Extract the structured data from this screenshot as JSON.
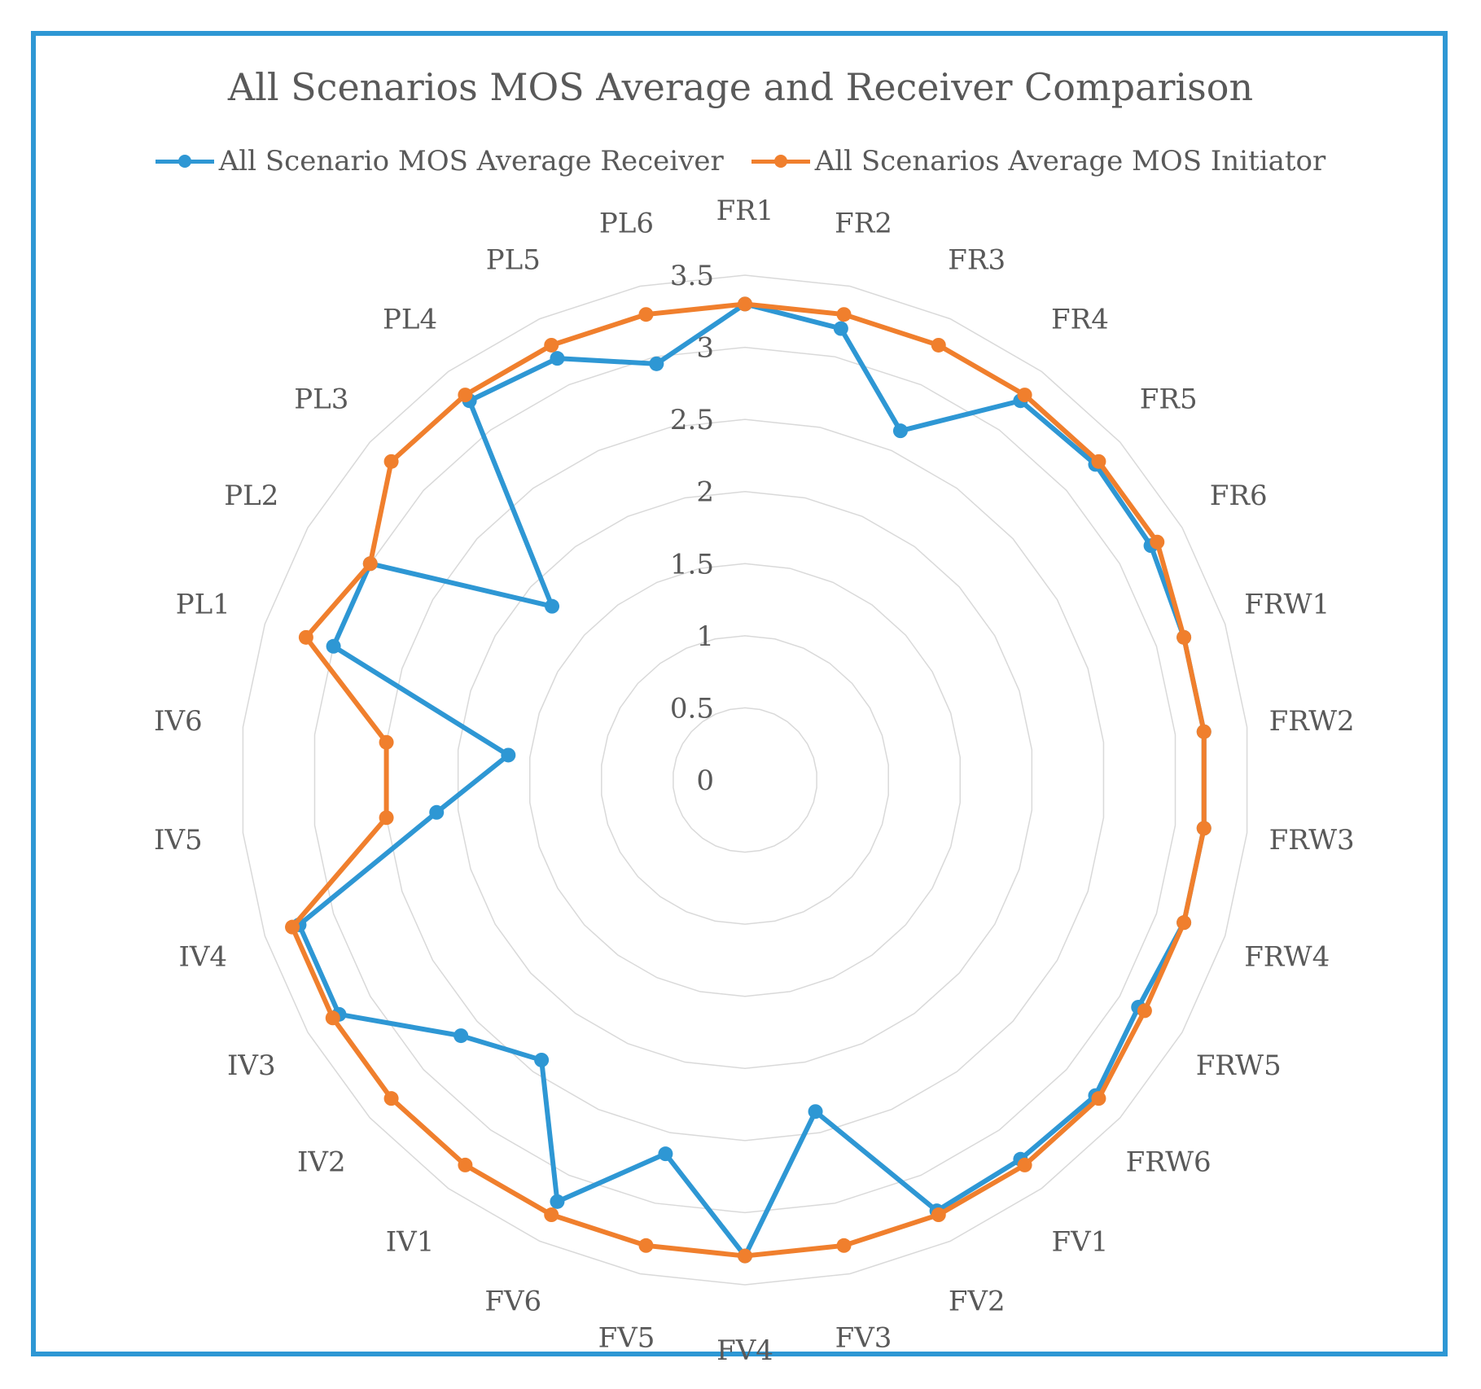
{
  "chart_data": {
    "type": "radar",
    "title": "All Scenarios MOS Average and Receiver Comparison",
    "categories": [
      "FR1",
      "FR2",
      "FR3",
      "FR4",
      "FR5",
      "FR6",
      "FRW1",
      "FRW2",
      "FRW3",
      "FRW4",
      "FRW5",
      "FRW6",
      "FV1",
      "FV2",
      "FV3",
      "FV4",
      "FV5",
      "FV6",
      "IV1",
      "IV2",
      "IV3",
      "IV4",
      "IV5",
      "IV6",
      "PL1",
      "PL2",
      "PL3",
      "PL4",
      "PL5",
      "PL6"
    ],
    "r_ticks": [
      "0",
      "0.5",
      "1",
      "1.5",
      "2",
      "2.5",
      "3",
      "3.5"
    ],
    "r_range": [
      0,
      3.5
    ],
    "legend_position": "top",
    "series": [
      {
        "name": "All Scenario MOS Average Receiver",
        "color": "#2e97d4",
        "values": [
          3.3,
          3.2,
          2.65,
          3.25,
          3.27,
          3.25,
          3.2,
          3.2,
          3.2,
          3.2,
          3.15,
          3.27,
          3.25,
          3.27,
          2.35,
          3.3,
          2.65,
          3.2,
          2.4,
          2.65,
          3.25,
          3.25,
          2.15,
          1.65,
          3.0,
          3.0,
          1.8,
          3.25,
          3.2,
          2.95
        ]
      },
      {
        "name": "All Scenarios Average MOS Initiator",
        "color": "#f07f2d",
        "values": [
          3.3,
          3.3,
          3.3,
          3.3,
          3.3,
          3.3,
          3.2,
          3.2,
          3.2,
          3.2,
          3.2,
          3.3,
          3.3,
          3.3,
          3.3,
          3.3,
          3.3,
          3.3,
          3.3,
          3.3,
          3.3,
          3.3,
          2.5,
          2.5,
          3.2,
          3.0,
          3.3,
          3.3,
          3.3,
          3.3
        ]
      }
    ]
  }
}
